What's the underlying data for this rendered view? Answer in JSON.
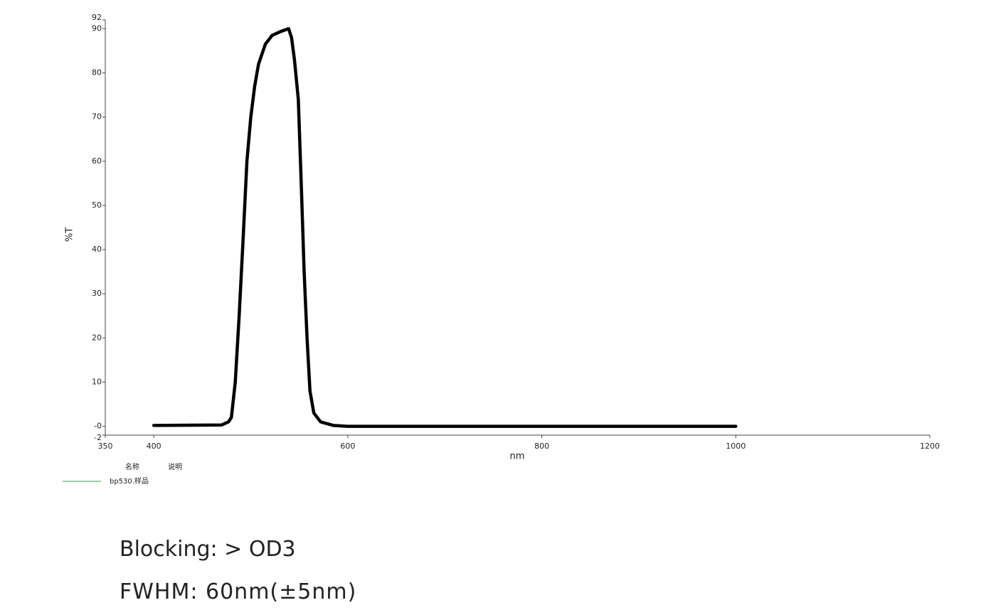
{
  "chart_data": {
    "type": "line",
    "x_label": "nm",
    "y_label": "%T",
    "x": [
      400,
      470,
      477,
      480,
      484,
      488,
      492,
      496,
      500,
      504,
      508,
      515,
      522,
      530,
      535,
      539,
      542,
      545,
      549,
      552,
      555,
      558,
      560,
      561,
      565,
      572,
      585,
      600,
      700,
      800,
      900,
      1000
    ],
    "series": [
      {
        "name": "bp530.样品",
        "color": "#000000",
        "values": [
          0.2,
          0.3,
          1,
          2,
          10,
          25,
          42,
          60,
          70,
          77,
          82,
          86.5,
          88.5,
          89.3,
          89.7,
          90,
          88,
          83,
          74,
          55,
          35,
          20,
          12,
          8,
          3,
          1,
          0.2,
          0,
          0,
          0,
          0,
          0
        ]
      }
    ],
    "legend_line_color": "#3a9a5a",
    "legend_headers": [
      "名称",
      "说明"
    ],
    "xlim": [
      350,
      1200
    ],
    "xticks": [
      350,
      400,
      600,
      800,
      1000,
      1200
    ],
    "ylim": [
      -2,
      92
    ],
    "yticks": [
      -2,
      {
        "value": 0,
        "label": "-0"
      },
      10,
      20,
      30,
      40,
      50,
      60,
      70,
      80,
      90,
      92
    ]
  },
  "notes": [
    "Blocking:  > OD3",
    "FWHM:  60nm(±5nm)"
  ]
}
